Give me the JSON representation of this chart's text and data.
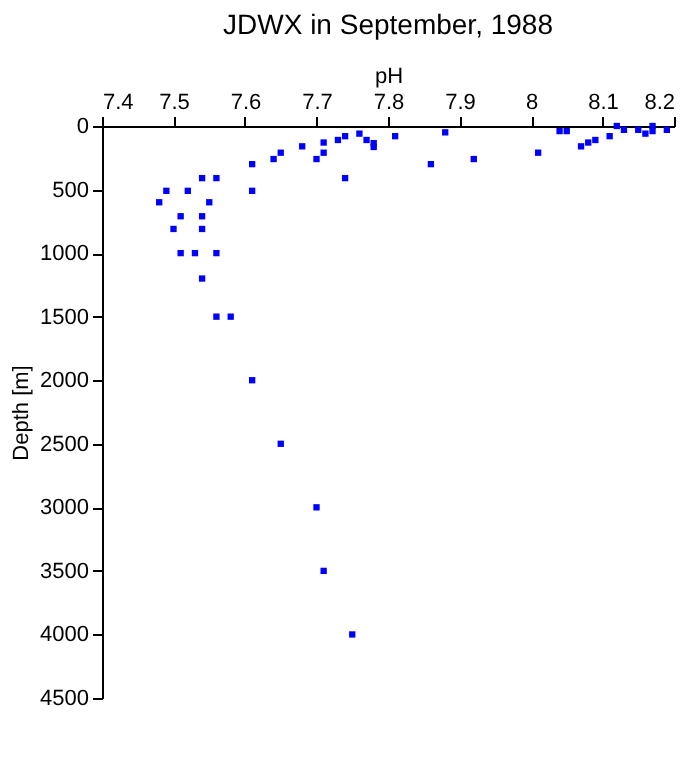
{
  "chart_data": {
    "type": "scatter",
    "title": "JDWX in September, 1988",
    "xlabel": "pH",
    "ylabel": "Depth [m]",
    "xlim": [
      7.4,
      8.2
    ],
    "xticks": [
      7.4,
      7.5,
      7.6,
      7.7,
      7.8,
      7.9,
      8,
      8.1,
      8.2
    ],
    "ylim": [
      4500,
      0
    ],
    "yticks": [
      0,
      500,
      1000,
      1500,
      2000,
      2500,
      3000,
      3500,
      4000,
      4500
    ],
    "grid": false,
    "marker": "square",
    "legend": false,
    "series": [
      {
        "color": "#0000ff",
        "x": [
          7.81,
          7.76,
          7.74,
          7.73,
          7.77,
          7.78,
          7.78,
          7.71,
          7.71,
          7.7,
          7.68,
          7.65,
          7.64,
          7.61,
          7.61,
          7.74,
          7.56,
          7.54,
          7.49,
          7.52,
          7.48,
          7.55,
          7.51,
          7.54,
          7.5,
          7.54,
          7.51,
          7.53,
          7.56,
          7.54,
          7.56,
          7.58,
          7.61,
          7.65,
          7.7,
          7.71,
          7.75,
          7.88,
          7.86,
          7.92,
          8.01,
          8.04,
          8.05,
          8.07,
          8.08,
          8.09,
          8.11,
          8.12,
          8.13,
          8.15,
          8.16,
          8.17,
          8.17,
          8.19
        ],
        "values": [
          80,
          60,
          80,
          110,
          110,
          135,
          165,
          130,
          210,
          260,
          160,
          210,
          260,
          300,
          510,
          410,
          410,
          410,
          510,
          510,
          600,
          600,
          710,
          710,
          810,
          810,
          1000,
          1000,
          1000,
          1200,
          1500,
          1500,
          2000,
          2500,
          3000,
          3500,
          4000,
          50,
          300,
          260,
          210,
          40,
          40,
          160,
          130,
          110,
          80,
          0,
          30,
          30,
          60,
          0,
          40,
          30
        ]
      }
    ]
  }
}
